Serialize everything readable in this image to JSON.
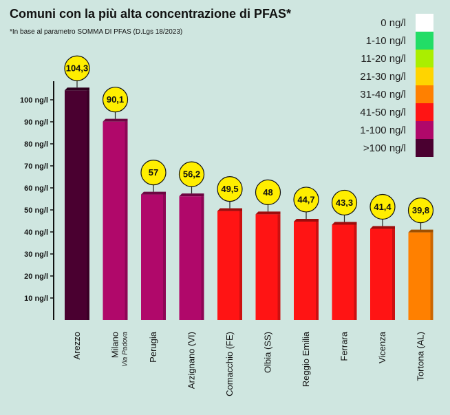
{
  "title": "Comuni con la più alta concentrazione di PFAS*",
  "subtitle": "*In base al parametro SOMMA DI PFAS (D.Lgs 18/2023)",
  "legend": [
    {
      "label": "0 ng/l",
      "color": "#ffffff"
    },
    {
      "label": "1-10 ng/l",
      "color": "#22dd66"
    },
    {
      "label": "11-20 ng/l",
      "color": "#aaee00"
    },
    {
      "label": "21-30 ng/l",
      "color": "#ffd400"
    },
    {
      "label": "31-40 ng/l",
      "color": "#ff8000"
    },
    {
      "label": "41-50 ng/l",
      "color": "#ff1414"
    },
    {
      "label": "1-100 ng/l",
      "color": "#b0086a"
    },
    {
      "label": ">100 ng/l",
      "color": "#4a0030"
    }
  ],
  "chart_data": {
    "type": "bar",
    "title": "Comuni con la più alta concentrazione di PFAS*",
    "subtitle": "*In base al parametro SOMMA DI PFAS (D.Lgs 18/2023)",
    "categories": [
      "Arezzo",
      "Milano",
      "Perugia",
      "Arzignano (VI)",
      "Comacchio (FE)",
      "Olbia (SS)",
      "Reggio Emilia",
      "Ferrara",
      "Vicenza",
      "Tortona (AL)"
    ],
    "sublabels": [
      "",
      "Via Padova",
      "",
      "",
      "",
      "",
      "",
      "",
      "",
      ""
    ],
    "values": [
      104.3,
      90.1,
      57,
      56.2,
      49.5,
      48,
      44.7,
      43.3,
      41.4,
      39.8
    ],
    "value_labels": [
      "104,3",
      "90,1",
      "57",
      "56,2",
      "49,5",
      "48",
      "44,7",
      "43,3",
      "41,4",
      "39,8"
    ],
    "bar_colors": [
      "#4a0030",
      "#b0086a",
      "#b0086a",
      "#b0086a",
      "#ff1414",
      "#ff1414",
      "#ff1414",
      "#ff1414",
      "#ff1414",
      "#ff8000"
    ],
    "yticks": [
      10,
      20,
      30,
      40,
      50,
      60,
      70,
      80,
      90,
      100
    ],
    "ytick_labels": [
      "10 ng/l",
      "20 ng/l",
      "30 ng/l",
      "40 ng/l",
      "50 ng/l",
      "60 ng/l",
      "70 ng/l",
      "80 ng/l",
      "90 ng/l",
      "100 ng/l"
    ],
    "ylim": [
      0,
      110
    ],
    "grid": false,
    "legend_position": "top-right"
  }
}
